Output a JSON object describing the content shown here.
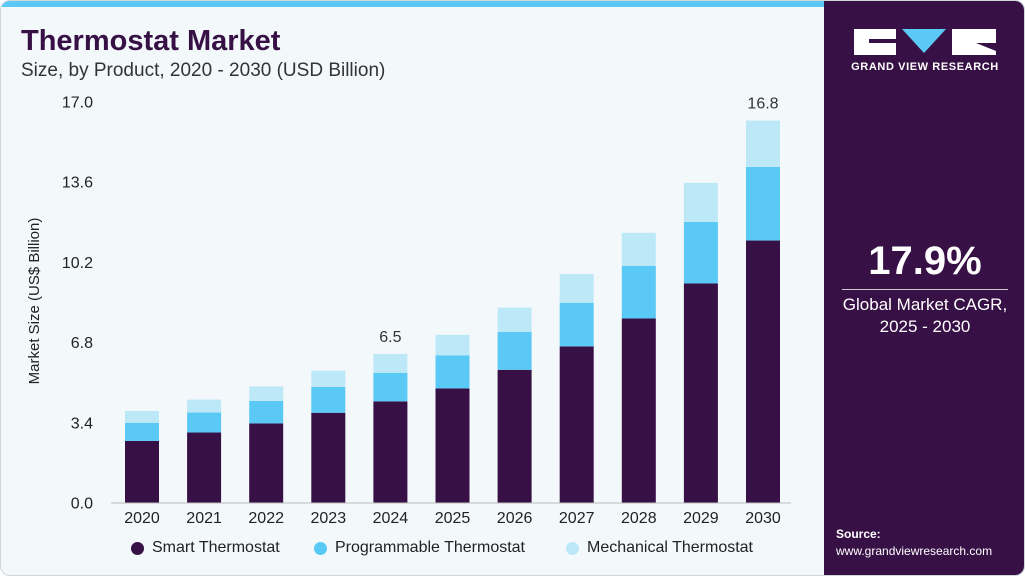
{
  "header": {
    "title": "Thermostat Market",
    "subtitle": "Size, by Product, 2020 - 2030 (USD Billion)"
  },
  "side": {
    "logo_text": "GRAND VIEW RESEARCH",
    "cagr": "17.9%",
    "cagr_label_1": "Global Market CAGR,",
    "cagr_label_2": "2025 - 2030",
    "source_label": "Source:",
    "source_url": "www.grandviewresearch.com"
  },
  "chart_data": {
    "type": "bar",
    "stacked": true,
    "title": "Thermostat Market",
    "subtitle": "Size, by Product, 2020 - 2030 (USD Billion)",
    "xlabel": "",
    "ylabel": "Market Size (US$ Billion)",
    "ylim": [
      0,
      17.6
    ],
    "yticks": [
      "0.0",
      "3.4",
      "6.8",
      "10.2",
      "13.6",
      "17.0"
    ],
    "categories": [
      "2020",
      "2021",
      "2022",
      "2023",
      "2024",
      "2025",
      "2026",
      "2027",
      "2028",
      "2029",
      "2030"
    ],
    "series": [
      {
        "name": "Smart Thermostat",
        "color": "#371045",
        "values": [
          2.71,
          3.08,
          3.48,
          3.95,
          4.45,
          5.02,
          5.84,
          6.87,
          8.1,
          9.64,
          11.53
        ]
      },
      {
        "name": "Programmable Thermostat",
        "color": "#5bc9f6",
        "values": [
          0.8,
          0.88,
          0.99,
          1.14,
          1.26,
          1.46,
          1.67,
          1.92,
          2.32,
          2.71,
          3.24
        ]
      },
      {
        "name": "Mechanical Thermostat",
        "color": "#bde8f8",
        "values": [
          0.52,
          0.57,
          0.64,
          0.71,
          0.83,
          0.9,
          1.07,
          1.27,
          1.45,
          1.72,
          2.04
        ]
      }
    ],
    "annotations": [
      {
        "category": "2024",
        "text": "6.5"
      },
      {
        "category": "2030",
        "text": "16.8"
      }
    ],
    "legend": "bottom",
    "grid": false
  }
}
